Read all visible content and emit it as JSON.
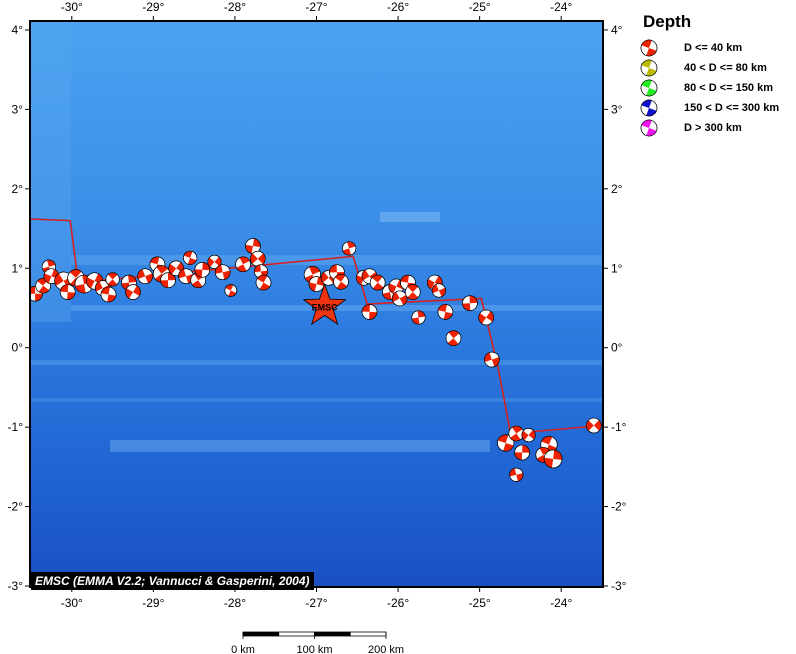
{
  "map": {
    "lon_range": [
      -30.5,
      -23.5
    ],
    "lat_range": [
      -3,
      4.1
    ],
    "x_ticks": [
      {
        "value": -30,
        "label": "-30°"
      },
      {
        "value": -29,
        "label": "-29°"
      },
      {
        "value": -28,
        "label": "-28°"
      },
      {
        "value": -27,
        "label": "-27°"
      },
      {
        "value": -26,
        "label": "-26°"
      },
      {
        "value": -25,
        "label": "-25°"
      },
      {
        "value": -24,
        "label": "-24°"
      }
    ],
    "y_ticks": [
      {
        "value": 4,
        "label": "4°"
      },
      {
        "value": 3,
        "label": "3°"
      },
      {
        "value": 2,
        "label": "2°"
      },
      {
        "value": 1,
        "label": "1°"
      },
      {
        "value": 0,
        "label": "0°"
      },
      {
        "value": -1,
        "label": "-1°"
      },
      {
        "value": -2,
        "label": "-2°"
      },
      {
        "value": -3,
        "label": "-3°"
      }
    ],
    "plate_boundary": [
      [
        -30.5,
        1.62
      ],
      [
        -30.02,
        1.6
      ],
      [
        -29.92,
        0.82
      ],
      [
        -26.55,
        1.15
      ],
      [
        -26.38,
        0.55
      ],
      [
        -24.98,
        0.62
      ],
      [
        -24.78,
        -0.22
      ],
      [
        -24.62,
        -1.08
      ],
      [
        -23.5,
        -0.98
      ]
    ],
    "events": [
      {
        "lon": -30.45,
        "lat": 0.68,
        "s": 1.0
      },
      {
        "lon": -30.35,
        "lat": 0.78,
        "s": 1.0
      },
      {
        "lon": -30.28,
        "lat": 1.02,
        "s": 0.9
      },
      {
        "lon": -30.25,
        "lat": 0.9,
        "s": 1.0
      },
      {
        "lon": -30.1,
        "lat": 0.84,
        "s": 1.2
      },
      {
        "lon": -30.05,
        "lat": 0.7,
        "s": 1.0
      },
      {
        "lon": -29.95,
        "lat": 0.88,
        "s": 1.1
      },
      {
        "lon": -29.85,
        "lat": 0.8,
        "s": 1.2
      },
      {
        "lon": -29.72,
        "lat": 0.84,
        "s": 1.1
      },
      {
        "lon": -29.62,
        "lat": 0.75,
        "s": 1.0
      },
      {
        "lon": -29.55,
        "lat": 0.67,
        "s": 1.0
      },
      {
        "lon": -29.5,
        "lat": 0.86,
        "s": 0.9
      },
      {
        "lon": -29.3,
        "lat": 0.82,
        "s": 1.0
      },
      {
        "lon": -29.25,
        "lat": 0.7,
        "s": 1.0
      },
      {
        "lon": -29.1,
        "lat": 0.9,
        "s": 1.0
      },
      {
        "lon": -28.95,
        "lat": 1.05,
        "s": 1.0
      },
      {
        "lon": -28.9,
        "lat": 0.93,
        "s": 1.1
      },
      {
        "lon": -28.82,
        "lat": 0.85,
        "s": 1.0
      },
      {
        "lon": -28.72,
        "lat": 1.0,
        "s": 1.0
      },
      {
        "lon": -28.6,
        "lat": 0.9,
        "s": 1.0
      },
      {
        "lon": -28.55,
        "lat": 1.13,
        "s": 0.9
      },
      {
        "lon": -28.45,
        "lat": 0.85,
        "s": 1.0
      },
      {
        "lon": -28.4,
        "lat": 0.98,
        "s": 1.0
      },
      {
        "lon": -28.25,
        "lat": 1.08,
        "s": 0.9
      },
      {
        "lon": -28.15,
        "lat": 0.95,
        "s": 1.0
      },
      {
        "lon": -28.05,
        "lat": 0.72,
        "s": 0.8
      },
      {
        "lon": -27.9,
        "lat": 1.05,
        "s": 1.0
      },
      {
        "lon": -27.78,
        "lat": 1.28,
        "s": 1.0
      },
      {
        "lon": -27.72,
        "lat": 1.12,
        "s": 1.0
      },
      {
        "lon": -27.68,
        "lat": 0.96,
        "s": 0.9
      },
      {
        "lon": -27.65,
        "lat": 0.82,
        "s": 1.0
      },
      {
        "lon": -27.05,
        "lat": 0.92,
        "s": 1.1
      },
      {
        "lon": -27.0,
        "lat": 0.8,
        "s": 1.0
      },
      {
        "lon": -26.85,
        "lat": 0.88,
        "s": 1.0
      },
      {
        "lon": -26.75,
        "lat": 0.95,
        "s": 1.0
      },
      {
        "lon": -26.7,
        "lat": 0.83,
        "s": 1.0
      },
      {
        "lon": -26.6,
        "lat": 1.25,
        "s": 0.9
      },
      {
        "lon": -26.42,
        "lat": 0.88,
        "s": 1.0
      },
      {
        "lon": -26.35,
        "lat": 0.9,
        "s": 1.0
      },
      {
        "lon": -26.35,
        "lat": 0.45,
        "s": 1.0
      },
      {
        "lon": -26.25,
        "lat": 0.82,
        "s": 1.0
      },
      {
        "lon": -26.1,
        "lat": 0.7,
        "s": 1.0
      },
      {
        "lon": -26.02,
        "lat": 0.77,
        "s": 1.0
      },
      {
        "lon": -25.98,
        "lat": 0.62,
        "s": 1.0
      },
      {
        "lon": -25.88,
        "lat": 0.82,
        "s": 1.0
      },
      {
        "lon": -25.82,
        "lat": 0.7,
        "s": 1.0
      },
      {
        "lon": -25.75,
        "lat": 0.38,
        "s": 0.9
      },
      {
        "lon": -25.55,
        "lat": 0.82,
        "s": 1.0
      },
      {
        "lon": -25.5,
        "lat": 0.72,
        "s": 0.9
      },
      {
        "lon": -25.42,
        "lat": 0.45,
        "s": 1.0
      },
      {
        "lon": -25.32,
        "lat": 0.12,
        "s": 1.0
      },
      {
        "lon": -25.12,
        "lat": 0.56,
        "s": 1.0
      },
      {
        "lon": -24.92,
        "lat": 0.38,
        "s": 1.0
      },
      {
        "lon": -24.85,
        "lat": -0.15,
        "s": 1.0
      },
      {
        "lon": -24.68,
        "lat": -1.2,
        "s": 1.1
      },
      {
        "lon": -24.55,
        "lat": -1.08,
        "s": 1.0
      },
      {
        "lon": -24.48,
        "lat": -1.32,
        "s": 1.0
      },
      {
        "lon": -24.4,
        "lat": -1.1,
        "s": 0.9
      },
      {
        "lon": -24.55,
        "lat": -1.6,
        "s": 0.9
      },
      {
        "lon": -24.15,
        "lat": -1.22,
        "s": 1.1
      },
      {
        "lon": -24.22,
        "lat": -1.35,
        "s": 1.0
      },
      {
        "lon": -24.1,
        "lat": -1.4,
        "s": 1.2
      },
      {
        "lon": -23.6,
        "lat": -0.98,
        "s": 1.0
      }
    ],
    "station": {
      "lon": -26.9,
      "lat": 0.52,
      "label": "EMSC"
    },
    "credit": "EMSC (EMMA V2.2; Vannucci & Gasperini, 2004)",
    "scale_bar": {
      "labels": [
        "0 km",
        "100 km",
        "200 km"
      ],
      "max_km": 200
    }
  },
  "legend": {
    "title": "Depth",
    "items": [
      {
        "label": "D <= 40 km",
        "color": "#ee2200"
      },
      {
        "label": "40 < D <= 80 km",
        "color": "#bbbb00"
      },
      {
        "label": "80 < D <= 150 km",
        "color": "#22ee22"
      },
      {
        "label": "150 < D <= 300 km",
        "color": "#1111cc"
      },
      {
        "label": "D > 300 km",
        "color": "#ee11ee"
      }
    ]
  },
  "colors": {
    "boundary": "#d42020",
    "event_fill": "#ee2200",
    "station_fill": "#ee3311"
  }
}
